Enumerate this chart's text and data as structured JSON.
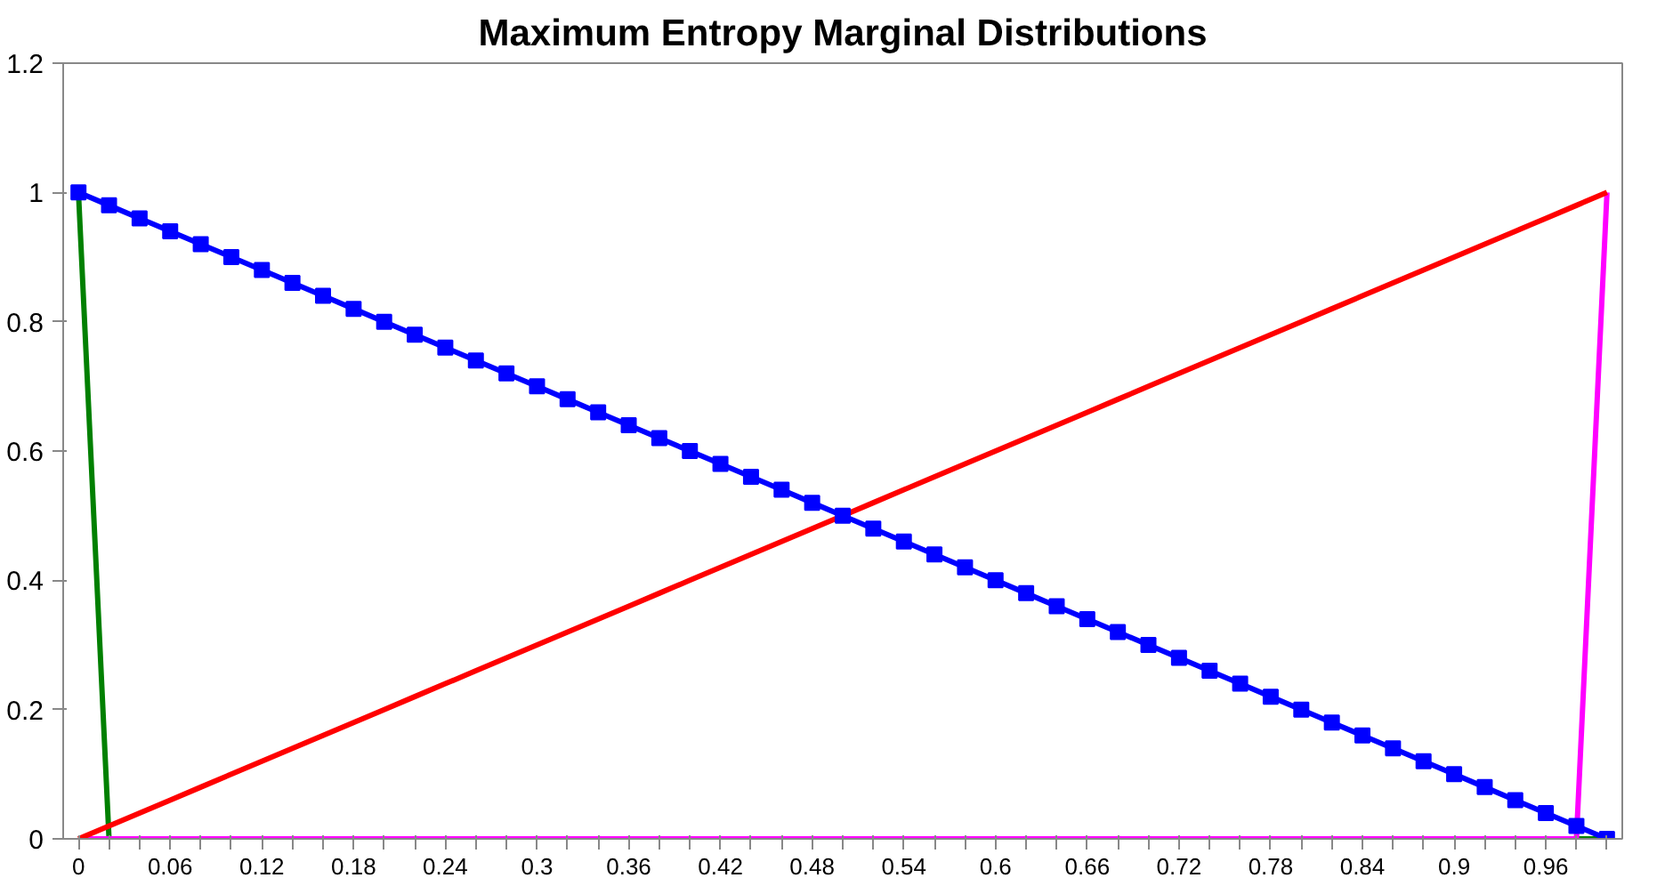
{
  "chart_data": {
    "type": "line",
    "title": "Maximum Entropy Marginal Distributions",
    "categories": [
      "0",
      null,
      null,
      "0.06",
      null,
      null,
      "0.12",
      null,
      null,
      "0.18",
      null,
      null,
      "0.24",
      null,
      null,
      "0.3",
      null,
      null,
      "0.36",
      null,
      null,
      "0.42",
      null,
      null,
      "0.48",
      null,
      null,
      "0.54",
      null,
      null,
      "0.6",
      null,
      null,
      "0.66",
      null,
      null,
      "0.72",
      null,
      null,
      "0.78",
      null,
      null,
      "0.84",
      null,
      null,
      "0.9",
      null,
      null,
      "0.96",
      null,
      null
    ],
    "series": [
      {
        "color": "#008000",
        "marker": "none",
        "values": [
          1,
          0,
          null,
          null,
          null,
          null,
          null,
          null,
          null,
          null,
          null,
          null,
          null,
          null,
          null,
          null,
          null,
          null,
          null,
          null,
          null,
          null,
          null,
          null,
          null,
          null,
          null,
          null,
          null,
          null,
          null,
          null,
          null,
          null,
          null,
          null,
          null,
          null,
          null,
          null,
          null,
          null,
          null,
          null,
          null,
          null,
          null,
          null,
          null,
          0,
          0
        ]
      },
      {
        "color": "#ff00ff",
        "marker": "none",
        "values": [
          0,
          0,
          0,
          0,
          0,
          0,
          0,
          0,
          0,
          0,
          0,
          0,
          0,
          0,
          0,
          0,
          0,
          0,
          0,
          0,
          0,
          0,
          0,
          0,
          0,
          0,
          0,
          0,
          0,
          0,
          0,
          0,
          0,
          0,
          0,
          0,
          0,
          0,
          0,
          0,
          0,
          0,
          0,
          0,
          0,
          0,
          0,
          0,
          0,
          0,
          1
        ]
      },
      {
        "color": "#ff0000",
        "marker": "none",
        "values": [
          0,
          0.02,
          0.04,
          0.06,
          0.08,
          0.1,
          0.12,
          0.14,
          0.16,
          0.18,
          0.2,
          0.22,
          0.24,
          0.26,
          0.28,
          0.3,
          0.32,
          0.34,
          0.36,
          0.38,
          0.4,
          0.42,
          0.44,
          0.46,
          0.48,
          0.5,
          0.52,
          0.54,
          0.56,
          0.58,
          0.6,
          0.62,
          0.64,
          0.66,
          0.68,
          0.7,
          0.72,
          0.74,
          0.76,
          0.78,
          0.8,
          0.82,
          0.84,
          0.86,
          0.88,
          0.9,
          0.92,
          0.94,
          0.96,
          0.98,
          1
        ]
      },
      {
        "color": "#0000ff",
        "marker": "square",
        "values": [
          1,
          0.98,
          0.96,
          0.94,
          0.92,
          0.9,
          0.88,
          0.86,
          0.84,
          0.82,
          0.8,
          0.78,
          0.76,
          0.74,
          0.72,
          0.7,
          0.68,
          0.66,
          0.64,
          0.62,
          0.6,
          0.58,
          0.56,
          0.54,
          0.52,
          0.5,
          0.48,
          0.46,
          0.44,
          0.42,
          0.4,
          0.38,
          0.36,
          0.34,
          0.32,
          0.3,
          0.28,
          0.26,
          0.24,
          0.22,
          0.2,
          0.18,
          0.16,
          0.14,
          0.12,
          0.1,
          0.08,
          0.06,
          0.04,
          0.02,
          0
        ]
      }
    ],
    "ylim": [
      0,
      1.2
    ],
    "yticks": [
      0,
      0.2,
      0.4,
      0.6,
      0.8,
      1,
      1.2
    ],
    "grid": false
  }
}
